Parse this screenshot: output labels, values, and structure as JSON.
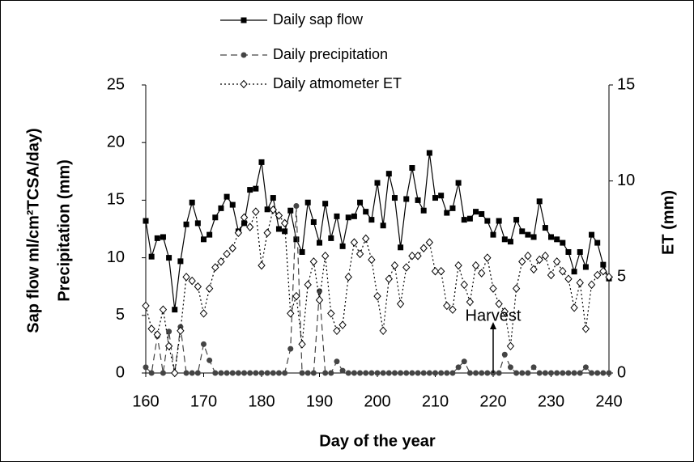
{
  "chart_data": {
    "type": "line",
    "x_label": "Day of the year",
    "y_label": [
      "Sap flow ml/cm²TCSA/day)",
      "Precipitation (mm)"
    ],
    "y2_label": "ET (mm)",
    "xlim": [
      160,
      240
    ],
    "xticks": [
      160,
      170,
      180,
      190,
      200,
      210,
      220,
      230,
      240
    ],
    "ylim": [
      0,
      25
    ],
    "yticks": [
      0,
      5,
      10,
      15,
      20,
      25
    ],
    "y2lim": [
      0,
      15
    ],
    "y2ticks": [
      0,
      5,
      10,
      15
    ],
    "annotation": {
      "text": "Harvest",
      "x": 220
    },
    "x": [
      160,
      161,
      162,
      163,
      164,
      165,
      166,
      167,
      168,
      169,
      170,
      171,
      172,
      173,
      174,
      175,
      176,
      177,
      178,
      179,
      180,
      181,
      182,
      183,
      184,
      185,
      186,
      187,
      188,
      189,
      190,
      191,
      192,
      193,
      194,
      195,
      196,
      197,
      198,
      199,
      200,
      201,
      202,
      203,
      204,
      205,
      206,
      207,
      208,
      209,
      210,
      211,
      212,
      213,
      214,
      215,
      216,
      217,
      218,
      219,
      220,
      221,
      222,
      223,
      224,
      225,
      226,
      227,
      228,
      229,
      230,
      231,
      232,
      233,
      234,
      235,
      236,
      237,
      238,
      239,
      240
    ],
    "series": [
      {
        "name": "Daily sap flow",
        "color": "#000000",
        "line_style": "solid",
        "marker": "square",
        "values": [
          13.2,
          10.1,
          11.7,
          11.8,
          10.0,
          5.5,
          9.7,
          12.9,
          14.8,
          13.0,
          11.6,
          12.0,
          13.5,
          14.3,
          15.3,
          14.6,
          12.3,
          13.0,
          15.9,
          16.0,
          18.3,
          14.2,
          15.2,
          12.5,
          12.3,
          14.1,
          11.6,
          10.5,
          14.8,
          13.1,
          11.3,
          14.7,
          11.7,
          13.6,
          11.0,
          13.5,
          13.6,
          14.8,
          14.0,
          13.3,
          16.5,
          12.8,
          17.3,
          15.2,
          10.9,
          15.1,
          17.8,
          15.0,
          14.1,
          19.1,
          15.2,
          15.4,
          13.9,
          14.3,
          16.5,
          13.3,
          13.4,
          14.0,
          13.8,
          13.2,
          12.0,
          13.2,
          11.6,
          11.4,
          13.3,
          12.3,
          12.0,
          11.8,
          14.9,
          12.6,
          11.8,
          11.6,
          11.3,
          10.5,
          8.8,
          10.5,
          9.2,
          12.0,
          11.3,
          9.4,
          8.2
        ]
      },
      {
        "name": "Daily precipitation",
        "color": "#444444",
        "line_style": "dashed",
        "marker": "circle",
        "values": [
          0.5,
          0,
          3.2,
          0,
          3.6,
          0,
          4.0,
          0,
          0,
          0,
          2.5,
          1.1,
          0,
          0,
          0,
          0,
          0,
          0,
          0,
          0,
          0,
          0,
          0,
          0,
          0,
          2.1,
          14.5,
          0,
          0,
          0,
          7.1,
          0,
          0,
          1.0,
          0.2,
          0,
          0,
          0,
          0,
          0,
          0,
          0,
          0,
          0,
          0,
          0,
          0,
          0,
          0,
          0,
          0,
          0,
          0,
          0,
          0.5,
          1.0,
          0,
          0,
          0,
          0,
          0,
          0,
          1.6,
          0.5,
          0,
          0,
          0,
          0.5,
          0,
          0,
          0,
          0,
          0,
          0,
          0,
          0,
          0.5,
          0,
          0,
          0,
          0
        ]
      },
      {
        "name": "Daily atmometer ET",
        "color": "#000000",
        "line_style": "dotted",
        "marker": "diamond",
        "axis": "y2",
        "values": [
          3.5,
          2.3,
          2.0,
          3.3,
          1.4,
          0.0,
          2.2,
          5.0,
          4.8,
          4.5,
          3.1,
          4.4,
          5.5,
          5.8,
          6.2,
          6.5,
          7.3,
          8.1,
          7.6,
          8.4,
          5.6,
          7.3,
          8.5,
          8.2,
          7.8,
          3.1,
          4.0,
          1.5,
          4.6,
          5.8,
          3.8,
          6.1,
          3.1,
          2.2,
          2.5,
          5.0,
          6.8,
          6.2,
          7.0,
          5.9,
          4.0,
          2.2,
          4.9,
          5.6,
          3.6,
          5.5,
          6.1,
          6.1,
          6.5,
          6.8,
          5.3,
          5.3,
          3.5,
          3.3,
          5.6,
          4.6,
          3.7,
          5.6,
          5.2,
          6.0,
          4.4,
          3.6,
          3.2,
          1.4,
          4.4,
          5.8,
          6.1,
          5.4,
          5.9,
          6.1,
          5.1,
          5.8,
          5.3,
          4.9,
          3.4,
          4.7,
          2.3,
          4.6,
          5.1,
          5.3,
          5.0
        ]
      }
    ]
  }
}
